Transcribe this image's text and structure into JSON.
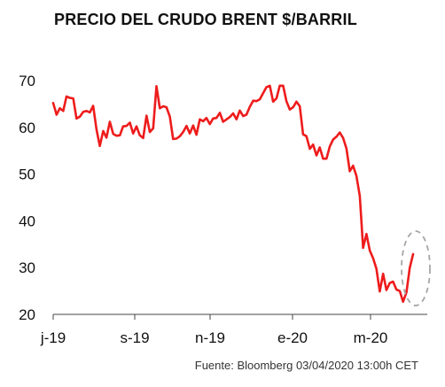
{
  "chart_data": {
    "type": "line",
    "title": "PRECIO DEL CRUDO BRENT $/BARRIL",
    "source": "Fuente:  Bloomberg 03/04/2020 13:00h CET",
    "ylim": [
      20,
      70
    ],
    "yticks": [
      20,
      30,
      40,
      50,
      60,
      70
    ],
    "xticks": [
      "j-19",
      "s-19",
      "n-19",
      "e-20",
      "m-20"
    ],
    "grid": false,
    "annotation": "dashed-ellipse-around-latest-rebound",
    "colors": {
      "line": "#ee1c1c",
      "annotation": "#a6a6a6",
      "axis": "#444444"
    },
    "series": [
      {
        "name": "Brent",
        "x_index_range": [
          0,
          39.5
        ],
        "values": [
          65.2,
          62.7,
          64.1,
          63.5,
          66.6,
          66.3,
          66.2,
          61.9,
          62.3,
          63.3,
          63.5,
          63.2,
          64.6,
          59.5,
          56.0,
          59.2,
          57.8,
          61.2,
          58.6,
          58.2,
          58.3,
          60.2,
          60.3,
          61.0,
          58.7,
          60.2,
          58.3,
          57.7,
          62.5,
          59.0,
          59.8,
          68.8,
          64.1,
          64.5,
          64.3,
          62.3,
          57.5,
          57.6,
          58.1,
          59.0,
          60.3,
          58.7,
          60.4,
          58.4,
          61.7,
          61.3,
          62.0,
          60.7,
          61.9,
          62.0,
          63.1,
          61.2,
          61.7,
          62.2,
          63.0,
          61.7,
          63.6,
          62.4,
          62.7,
          64.4,
          65.7,
          65.6,
          66.0,
          67.3,
          68.6,
          68.9,
          65.5,
          66.2,
          68.9,
          68.9,
          65.6,
          63.8,
          64.3,
          65.5,
          64.5,
          58.5,
          58.1,
          55.4,
          56.3,
          54.0,
          55.7,
          53.3,
          53.3,
          55.9,
          57.4,
          58.0,
          58.9,
          57.7,
          55.5,
          50.6,
          51.8,
          49.6,
          45.3,
          34.2,
          37.2,
          33.7,
          32.0,
          29.8,
          24.9,
          28.7,
          25.2,
          26.7,
          27.0,
          25.3,
          25.0,
          22.7,
          24.7,
          29.9,
          32.9
        ]
      }
    ]
  }
}
